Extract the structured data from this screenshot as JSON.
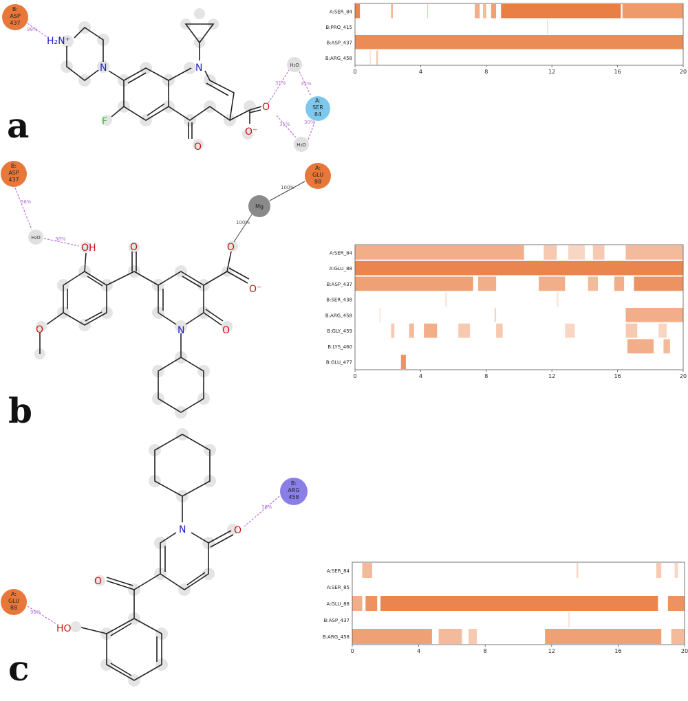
{
  "panels": [
    {
      "letter": "a",
      "residues": [
        {
          "id": "B:\nASP\n437",
          "lines": [
            "B:",
            "ASP",
            "437"
          ],
          "color": "#e8783a"
        },
        {
          "id": "A:\nSER\n84",
          "lines": [
            "A:",
            "SER",
            "84"
          ],
          "color": "#7ec8ee"
        }
      ],
      "waters": [
        "H₂O",
        "H₂O"
      ],
      "hbond_labels": [
        "98%",
        "31%",
        "35%",
        "31%",
        "30%"
      ],
      "atoms": [
        "H₂N⁺",
        "N",
        "N",
        "F",
        "O",
        "O",
        "O⁻"
      ],
      "timeline": {
        "labels": [
          "A:SER_84",
          "B:PRO_415",
          "B:ASP_437",
          "B:ARG_458"
        ],
        "x_ticks": [
          "0",
          "4",
          "8",
          "12",
          "16",
          "20"
        ],
        "xlim": [
          0,
          20
        ],
        "occupancy": [
          [
            [
              0,
              0.3,
              0.9
            ],
            [
              2.2,
              2.3,
              0.6
            ],
            [
              4.4,
              4.45,
              0.4
            ],
            [
              7.3,
              7.6,
              0.6
            ],
            [
              7.8,
              8.0,
              0.5
            ],
            [
              8.3,
              8.6,
              0.7
            ],
            [
              8.9,
              16.2,
              0.95
            ],
            [
              16.3,
              20,
              0.75
            ]
          ],
          [
            [
              11.7,
              11.75,
              0.3
            ]
          ],
          [
            [
              0,
              20,
              0.85
            ]
          ],
          [
            [
              0.9,
              0.95,
              0.3
            ],
            [
              1.3,
              1.4,
              0.4
            ]
          ]
        ]
      }
    },
    {
      "letter": "b",
      "residues": [
        {
          "id": "B:\nASP\n437",
          "lines": [
            "B:",
            "ASP",
            "437"
          ],
          "color": "#e8783a"
        },
        {
          "id": "A:\nGLU\n88",
          "lines": [
            "A:",
            "GLU",
            "88"
          ],
          "color": "#e8783a"
        }
      ],
      "waters": [
        "H₂O"
      ],
      "ion": "Mg",
      "hbond_labels": [
        "36%",
        "38%",
        "100%",
        "100%"
      ],
      "atoms": [
        "OH",
        "O",
        "O",
        "O⁻",
        "N",
        "O",
        "O"
      ],
      "timeline": {
        "labels": [
          "A:SER_84",
          "A:GLU_88",
          "B:ASP_437",
          "B:SER_438",
          "B:ARG_458",
          "B:GLY_459",
          "B:LYS_460",
          "B:GLU_477"
        ],
        "x_ticks": [
          "0",
          "4",
          "8",
          "12",
          "16",
          "20"
        ],
        "xlim": [
          0,
          20
        ],
        "occupancy": [
          [
            [
              0,
              10.3,
              0.6
            ],
            [
              11.5,
              12.3,
              0.4
            ],
            [
              13,
              14,
              0.3
            ],
            [
              14.5,
              15.2,
              0.4
            ],
            [
              16.5,
              20,
              0.5
            ]
          ],
          [
            [
              0,
              20,
              0.9
            ]
          ],
          [
            [
              0,
              7.2,
              0.7
            ],
            [
              7.5,
              8.6,
              0.6
            ],
            [
              11.2,
              12.8,
              0.6
            ],
            [
              14.2,
              14.8,
              0.5
            ],
            [
              15.8,
              16.4,
              0.6
            ],
            [
              17,
              20,
              0.8
            ]
          ],
          [
            [
              5.5,
              5.6,
              0.2
            ],
            [
              12.3,
              12.4,
              0.2
            ]
          ],
          [
            [
              1.5,
              1.55,
              0.3
            ],
            [
              8.5,
              8.6,
              0.3
            ],
            [
              16.5,
              20,
              0.6
            ]
          ],
          [
            [
              2.2,
              2.4,
              0.4
            ],
            [
              3.3,
              3.6,
              0.5
            ],
            [
              4.2,
              5.0,
              0.6
            ],
            [
              6.3,
              7.0,
              0.4
            ],
            [
              8.6,
              9.0,
              0.4
            ],
            [
              12.8,
              13.4,
              0.3
            ],
            [
              16.5,
              17.2,
              0.4
            ],
            [
              18.5,
              19.0,
              0.3
            ]
          ],
          [
            [
              16.6,
              18.2,
              0.6
            ],
            [
              18.8,
              19.2,
              0.5
            ]
          ],
          [
            [
              2.8,
              3.1,
              0.8
            ]
          ]
        ]
      }
    },
    {
      "letter": "c",
      "residues": [
        {
          "id": "B:\nARG\n458",
          "lines": [
            "B:",
            "ARG",
            "458"
          ],
          "color": "#8a7ee8"
        },
        {
          "id": "A:\nGLU\n88",
          "lines": [
            "A:",
            "GLU",
            "88"
          ],
          "color": "#e8783a"
        }
      ],
      "hbond_labels": [
        "38%",
        "99%"
      ],
      "atoms": [
        "N",
        "O",
        "O",
        "HO"
      ],
      "timeline": {
        "labels": [
          "A:SER_84",
          "A:SER_85",
          "A:GLU_88",
          "B:ASP_437",
          "B:ARG_458"
        ],
        "x_ticks": [
          "0",
          "4",
          "8",
          "12",
          "16",
          "20"
        ],
        "xlim": [
          0,
          20
        ],
        "occupancy": [
          [
            [
              0.6,
              1.2,
              0.5
            ],
            [
              13.5,
              13.6,
              0.3
            ],
            [
              18.3,
              18.6,
              0.4
            ],
            [
              19.4,
              19.6,
              0.3
            ]
          ],
          [],
          [
            [
              0,
              0.6,
              0.6
            ],
            [
              0.8,
              1.5,
              0.8
            ],
            [
              1.7,
              18.4,
              0.9
            ],
            [
              19.0,
              20,
              0.8
            ]
          ],
          [
            [
              13.0,
              13.1,
              0.2
            ]
          ],
          [
            [
              0,
              4.8,
              0.7
            ],
            [
              5.2,
              6.6,
              0.5
            ],
            [
              7.0,
              7.5,
              0.4
            ],
            [
              11.6,
              18.6,
              0.7
            ],
            [
              19.2,
              20,
              0.5
            ]
          ]
        ]
      }
    }
  ],
  "colors": {
    "occupancy": "#e8783a",
    "hbond": "#c070e0",
    "bond": "#222222",
    "halo": "#d8d8d8",
    "nitrogen": "#2020c0",
    "oxygen": "#d01010",
    "fluorine": "#40c040"
  }
}
